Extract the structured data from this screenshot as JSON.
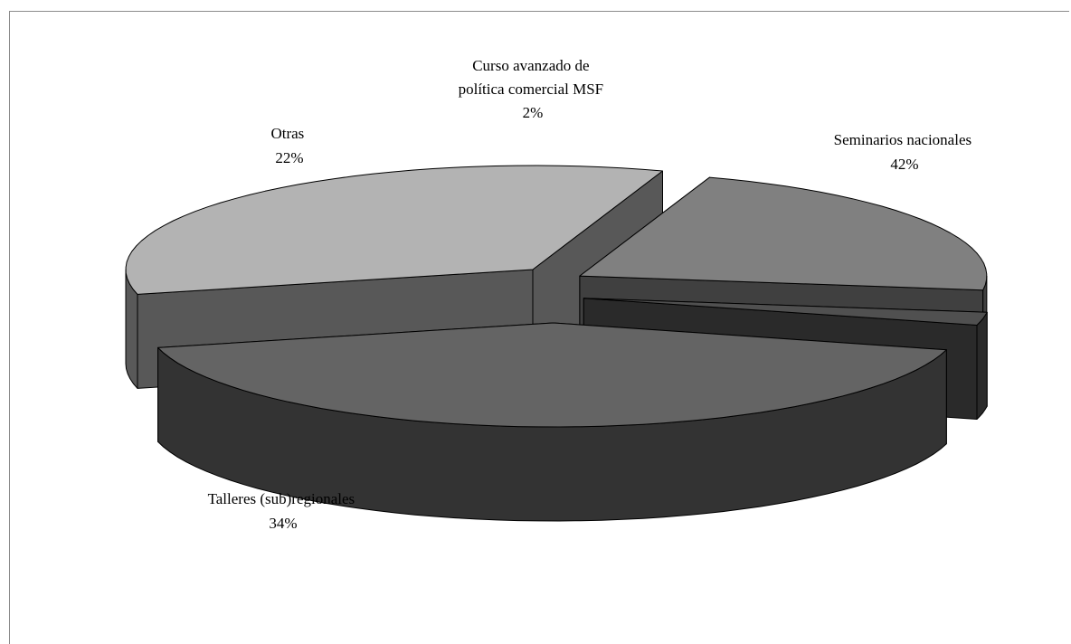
{
  "chart_data": {
    "type": "pie",
    "three_d": true,
    "title": "",
    "categories": [
      "Seminarios nacionales",
      "Talleres (sub)regionales",
      "Otras",
      "Curso avanzado de política comercial MSF"
    ],
    "values": [
      42,
      34,
      22,
      2
    ],
    "value_labels": [
      "42%",
      "34%",
      "22%",
      "2%"
    ],
    "label_lines": [
      [
        "Seminarios nacionales"
      ],
      [
        "Talleres (sub)regionales"
      ],
      [
        "Otras"
      ],
      [
        "Curso avanzado de",
        "política comercial MSF"
      ]
    ],
    "colors": [
      "#646464",
      "#b3b3b3",
      "#808080",
      "#505050"
    ],
    "side_colors": [
      "#333333",
      "#585858",
      "#404040",
      "#2a2a2a"
    ],
    "legend": "none",
    "exploded": true
  }
}
